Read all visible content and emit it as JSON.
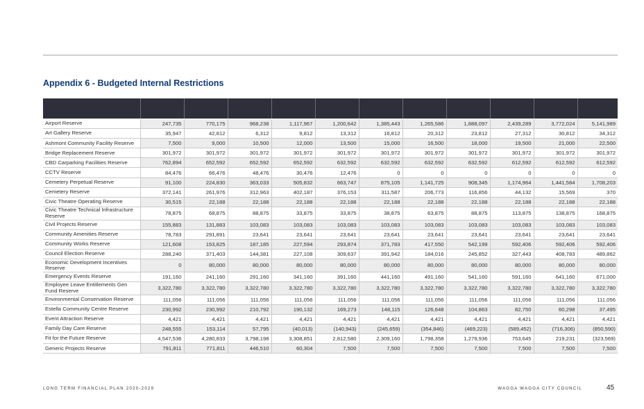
{
  "title": "Appendix 6 - Budgeted Internal Restrictions",
  "rows": [
    {
      "name": "Airport Reserve",
      "values": [
        "247,735",
        "770,175",
        "968,238",
        "1,117,967",
        "1,200,642",
        "1,385,443",
        "1,265,586",
        "1,888,097",
        "2,439,289",
        "3,772,024",
        "5,141,989"
      ]
    },
    {
      "name": "Art Gallery Reserve",
      "values": [
        "35,947",
        "42,812",
        "6,312",
        "9,812",
        "13,312",
        "16,812",
        "20,312",
        "23,812",
        "27,312",
        "30,812",
        "34,312"
      ]
    },
    {
      "name": "Ashmont Community Facility Reserve",
      "values": [
        "7,500",
        "9,000",
        "10,500",
        "12,000",
        "13,500",
        "15,000",
        "16,500",
        "18,000",
        "19,500",
        "21,000",
        "22,500"
      ]
    },
    {
      "name": "Bridge Replacement Reserve",
      "values": [
        "301,972",
        "301,972",
        "301,972",
        "301,972",
        "301,972",
        "301,972",
        "301,972",
        "301,972",
        "301,972",
        "301,972",
        "301,972"
      ]
    },
    {
      "name": "CBD Carparking Facilities Reserve",
      "values": [
        "762,894",
        "652,592",
        "652,592",
        "652,592",
        "632,592",
        "632,592",
        "632,592",
        "632,592",
        "612,592",
        "612,592",
        "612,592"
      ]
    },
    {
      "name": "CCTV Reserve",
      "values": [
        "84,476",
        "66,476",
        "48,476",
        "30,476",
        "12,476",
        "0",
        "0",
        "0",
        "0",
        "0",
        "0"
      ]
    },
    {
      "name": "Cemetery Perpetual Reserve",
      "values": [
        "91,100",
        "224,830",
        "363,033",
        "505,832",
        "663,747",
        "875,105",
        "1,141,725",
        "908,345",
        "1,174,964",
        "1,441,584",
        "1,708,203"
      ]
    },
    {
      "name": "Cemetery Reserve",
      "values": [
        "372,141",
        "261,976",
        "312,963",
        "402,187",
        "376,153",
        "311,587",
        "206,773",
        "116,856",
        "44,132",
        "15,569",
        "370"
      ]
    },
    {
      "name": "Civic Theatre Operating Reserve",
      "values": [
        "30,515",
        "22,188",
        "22,188",
        "22,188",
        "22,188",
        "22,188",
        "22,188",
        "22,188",
        "22,188",
        "22,188",
        "22,188"
      ]
    },
    {
      "name": "Civic Theatre Technical Infrastructure Reserve",
      "values": [
        "78,875",
        "68,875",
        "88,875",
        "33,875",
        "33,875",
        "38,875",
        "63,875",
        "88,875",
        "113,875",
        "138,875",
        "168,875"
      ]
    },
    {
      "name": "Civil Projects Reserve",
      "values": [
        "155,883",
        "131,883",
        "103,083",
        "103,083",
        "103,083",
        "103,083",
        "103,083",
        "103,083",
        "103,083",
        "103,083",
        "103,083"
      ]
    },
    {
      "name": "Community Amenities Reserve",
      "values": [
        "78,783",
        "291,891",
        "23,641",
        "23,641",
        "23,641",
        "23,641",
        "23,641",
        "23,641",
        "23,641",
        "23,641",
        "23,641"
      ]
    },
    {
      "name": "Community Works Reserve",
      "values": [
        "121,608",
        "153,825",
        "187,185",
        "227,594",
        "293,874",
        "371,783",
        "417,550",
        "542,199",
        "592,406",
        "592,406",
        "592,406"
      ]
    },
    {
      "name": "Council Election Reserve",
      "values": [
        "288,240",
        "371,403",
        "144,381",
        "227,108",
        "309,637",
        "391,942",
        "184,016",
        "245,852",
        "327,443",
        "408,783",
        "489,862"
      ]
    },
    {
      "name": "Economic Development Incentives Reserve",
      "values": [
        "0",
        "80,000",
        "80,000",
        "80,000",
        "80,000",
        "80,000",
        "80,000",
        "80,000",
        "80,000",
        "80,000",
        "80,000"
      ]
    },
    {
      "name": "Emergency Events Reserve",
      "values": [
        "191,160",
        "241,160",
        "291,160",
        "341,160",
        "391,160",
        "441,160",
        "491,160",
        "541,160",
        "591,160",
        "641,160",
        "671,000"
      ]
    },
    {
      "name": "Employee Leave Entitlements Gen Fund Reserve",
      "values": [
        "3,322,780",
        "3,322,780",
        "3,322,780",
        "3,322,780",
        "3,322,780",
        "3,322,780",
        "3,322,780",
        "3,322,780",
        "3,322,780",
        "3,322,780",
        "3,322,780"
      ]
    },
    {
      "name": "Environmental Conservation Reserve",
      "values": [
        "111,056",
        "111,056",
        "111,056",
        "111,056",
        "111,056",
        "111,056",
        "111,056",
        "111,056",
        "111,056",
        "111,056",
        "111,056"
      ]
    },
    {
      "name": "Estella Community Centre Reserve",
      "values": [
        "230,992",
        "230,992",
        "210,792",
        "190,132",
        "169,273",
        "148,115",
        "126,648",
        "104,863",
        "82,750",
        "60,298",
        "37,495"
      ]
    },
    {
      "name": "Event Attraction Reserve",
      "values": [
        "4,421",
        "4,421",
        "4,421",
        "4,421",
        "4,421",
        "4,421",
        "4,421",
        "4,421",
        "4,421",
        "4,421",
        "4,421"
      ]
    },
    {
      "name": "Family Day Care Reserve",
      "values": [
        "248,555",
        "153,114",
        "57,795",
        "(40,013)",
        "(140,943)",
        "(245,659)",
        "(354,846)",
        "(469,223)",
        "(589,452)",
        "(716,306)",
        "(850,590)"
      ]
    },
    {
      "name": "Fit for the Future Reserve",
      "values": [
        "4,547,536",
        "4,280,833",
        "3,798,198",
        "3,308,851",
        "2,812,580",
        "2,309,160",
        "1,798,358",
        "1,279,936",
        "753,645",
        "219,231",
        "(323,569)"
      ]
    },
    {
      "name": "Generic Projects Reserve",
      "values": [
        "791,811",
        "771,811",
        "446,510",
        "60,304",
        "7,500",
        "7,500",
        "7,500",
        "7,500",
        "7,500",
        "7,500",
        "7,500"
      ]
    }
  ],
  "footer": {
    "left": "LONG TERM FINANCIAL PLAN 2020-2029",
    "right": "WAGGA WAGGA CITY COUNCIL",
    "page": "45"
  }
}
